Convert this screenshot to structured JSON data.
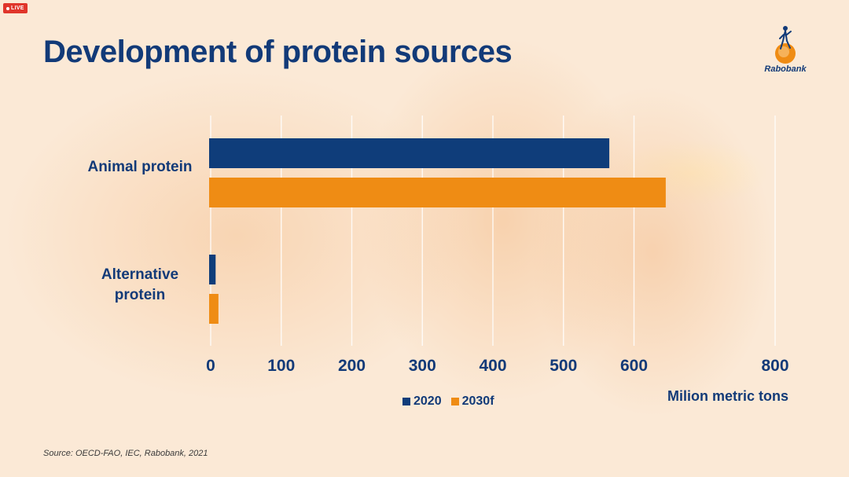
{
  "live_badge": "LIVE",
  "title": "Development of protein sources",
  "brand": "Rabobank",
  "source": "Source: OECD-FAO, IEC, Rabobank, 2021",
  "colors": {
    "series_2020": "#0f3d7a",
    "series_2030f": "#ef8c14",
    "text": "#123a78",
    "grid": "#ffffff"
  },
  "chart_data": {
    "type": "bar",
    "orientation": "horizontal",
    "categories": [
      "Animal protein",
      "Alternative protein"
    ],
    "series": [
      {
        "name": "2020",
        "values": [
          565,
          7
        ]
      },
      {
        "name": "2030f",
        "values": [
          645,
          11
        ]
      }
    ],
    "xlabel": "Milion metric tons",
    "ylabel": "",
    "xlim": [
      0,
      800
    ],
    "xticks": [
      0,
      100,
      200,
      300,
      400,
      500,
      600,
      800
    ],
    "grid": true,
    "legend": "bottom"
  }
}
